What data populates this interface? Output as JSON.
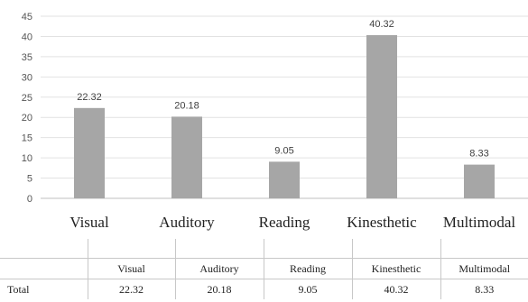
{
  "chart_data": {
    "type": "bar",
    "categories": [
      "Visual",
      "Auditory",
      "Reading",
      "Kinesthetic",
      "Multimodal"
    ],
    "series": [
      {
        "values": [
          22.32,
          20.18,
          9.05,
          40.32,
          8.33
        ]
      }
    ],
    "data_labels": [
      "22.32",
      "20.18",
      "9.05",
      "40.32",
      "8.33"
    ],
    "y_ticks": [
      "0",
      "5",
      "10",
      "15",
      "20",
      "25",
      "30",
      "35",
      "40",
      "45"
    ],
    "ylim": [
      0,
      45
    ],
    "grid": true,
    "bar_color": "#a6a6a6",
    "title": "",
    "xlabel": "",
    "ylabel": ""
  },
  "table": {
    "headers": [
      "",
      "Visual",
      "Auditory",
      "Reading",
      "Kinesthetic",
      "Multimodal"
    ],
    "row_label": "Total",
    "values": [
      "22.32",
      "20.18",
      "9.05",
      "40.32",
      "8.33"
    ]
  }
}
